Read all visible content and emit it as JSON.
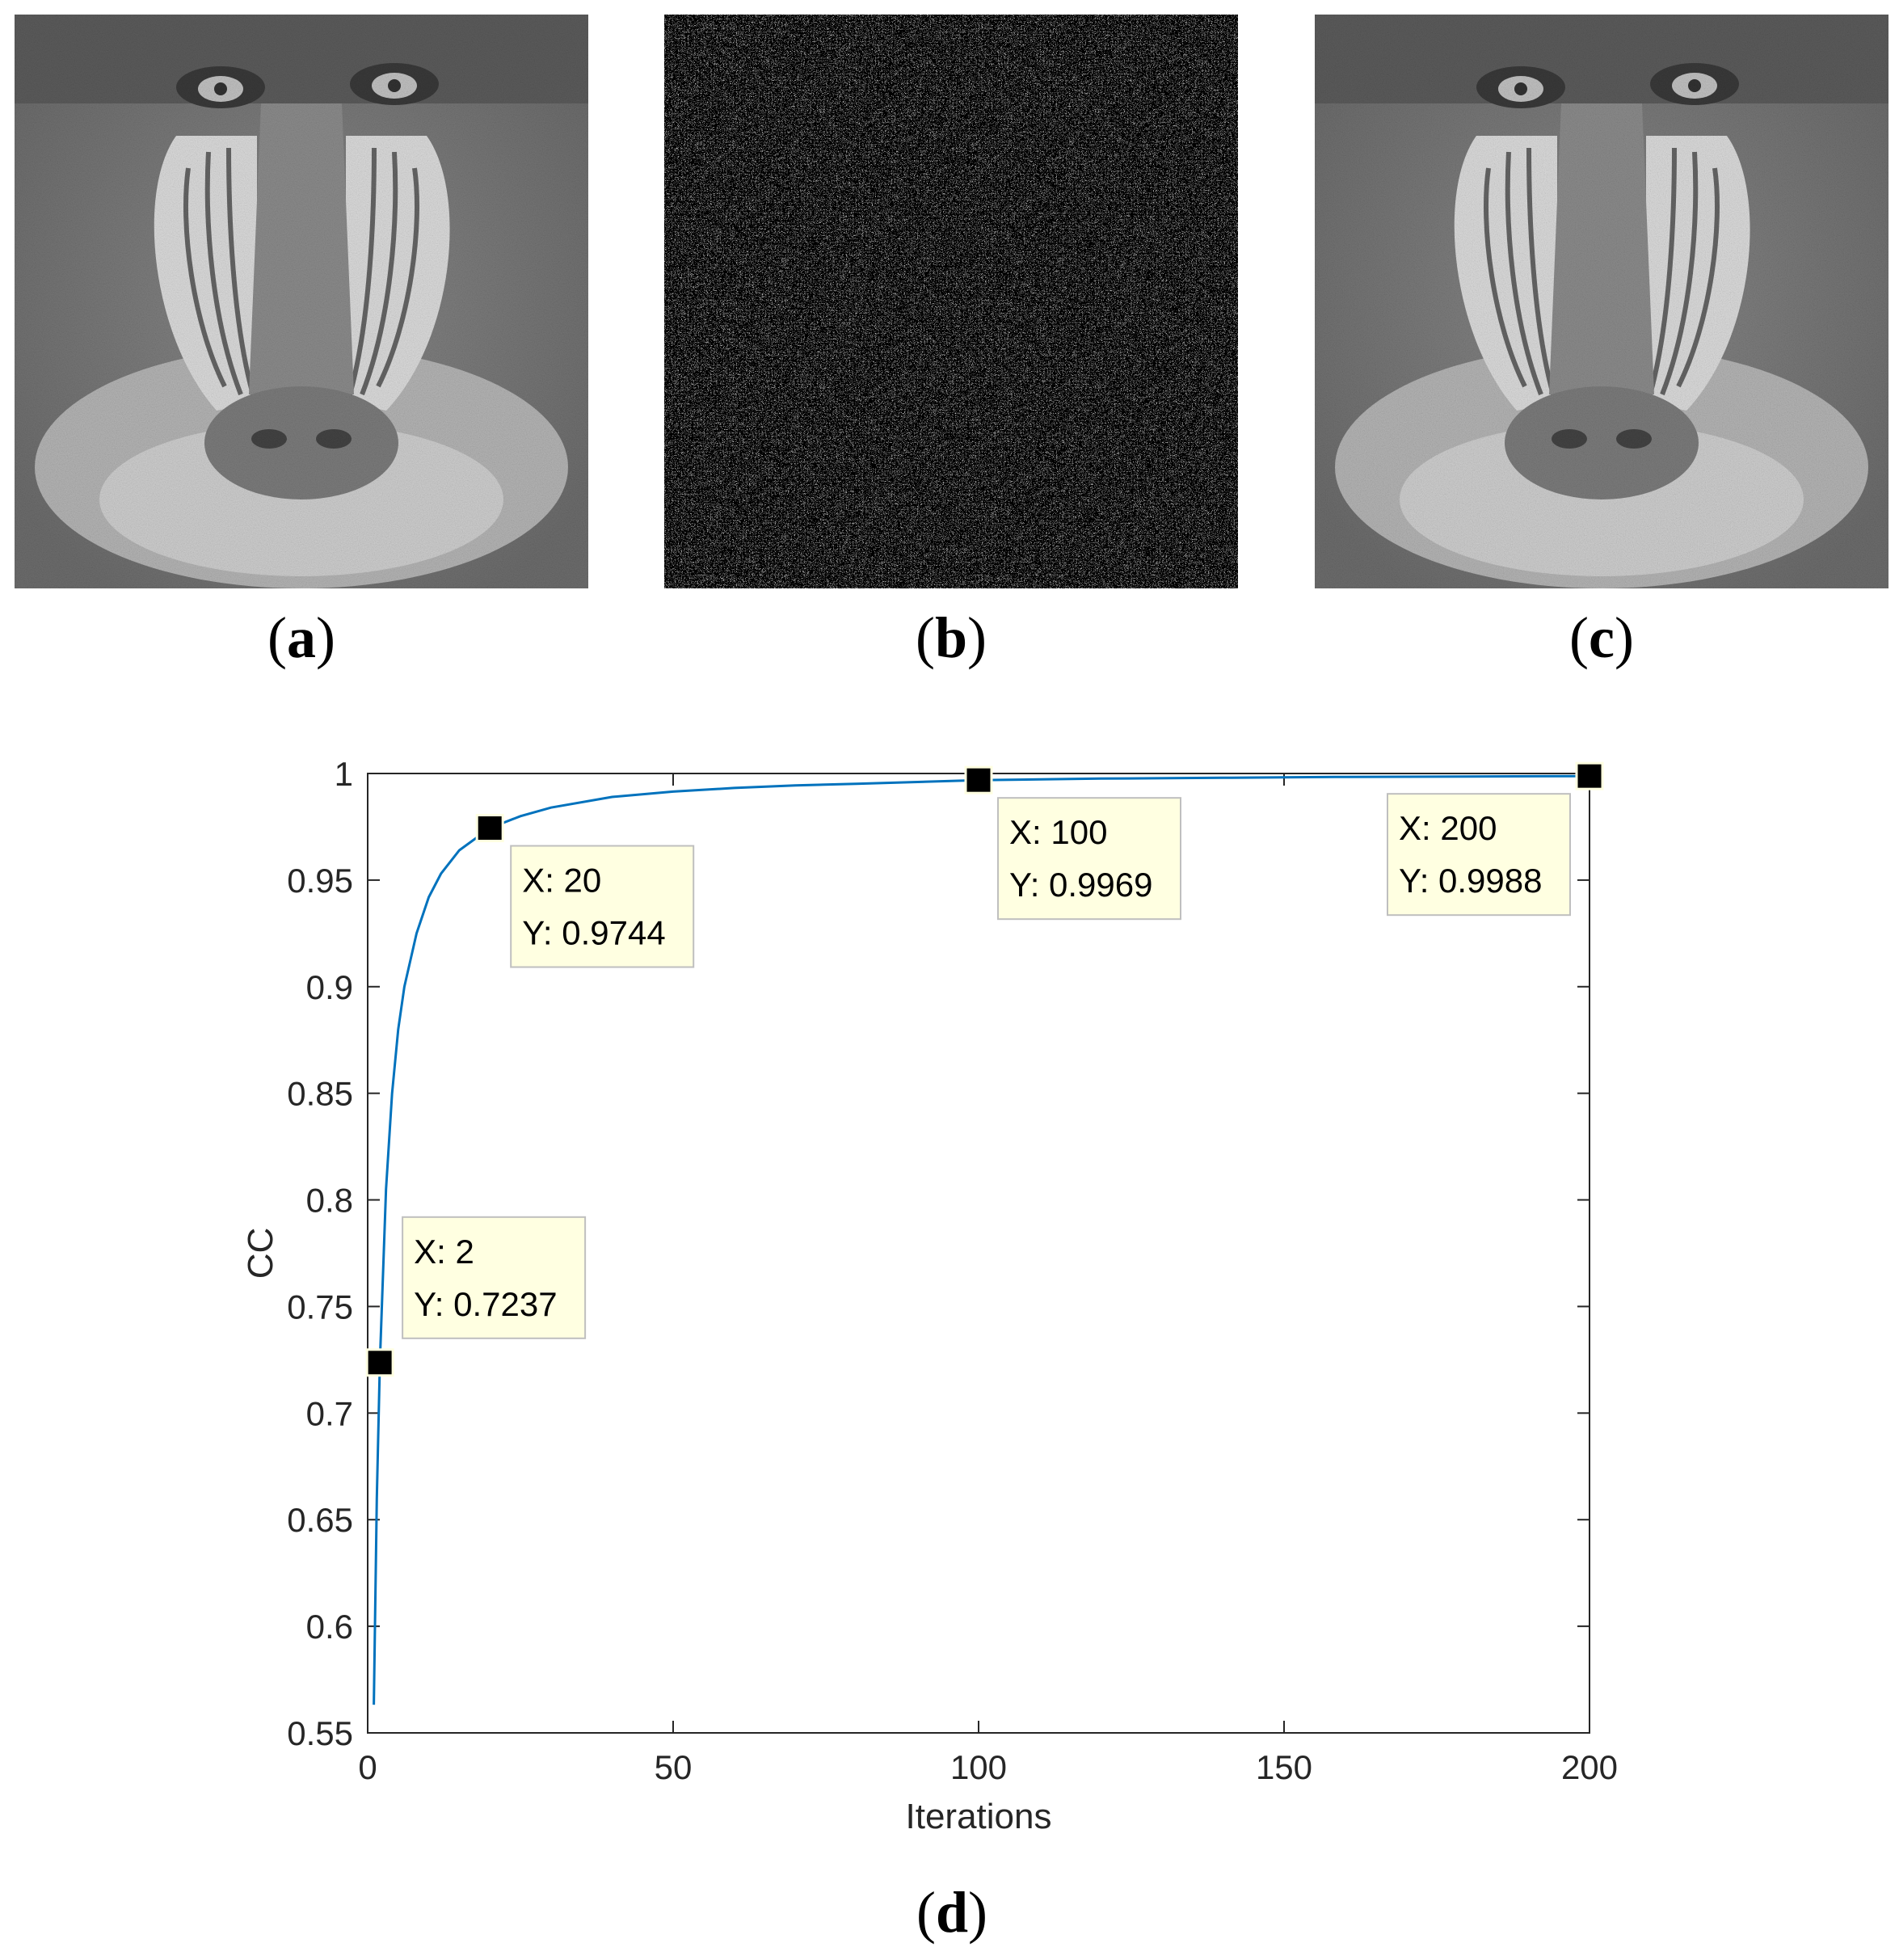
{
  "figure": {
    "panels": [
      {
        "id": "a",
        "label_open": "(",
        "label_letter": "a",
        "label_close": ")",
        "image": "baboon-original-image"
      },
      {
        "id": "b",
        "label_open": "(",
        "label_letter": "b",
        "label_close": ")",
        "image": "encrypted-noise-image"
      },
      {
        "id": "c",
        "label_open": "(",
        "label_letter": "c",
        "label_close": ")",
        "image": "baboon-decrypted-image"
      },
      {
        "id": "d",
        "label_open": "(",
        "label_letter": "d",
        "label_close": ")",
        "image": "cc-vs-iterations-chart"
      }
    ]
  },
  "chart_data": {
    "type": "line",
    "title": "",
    "xlabel": "Iterations",
    "ylabel": "CC",
    "xlim": [
      0,
      200
    ],
    "ylim": [
      0.55,
      1.0
    ],
    "x_ticks": [
      "0",
      "50",
      "100",
      "150",
      "200"
    ],
    "y_ticks": [
      "0.55",
      "0.6",
      "0.65",
      "0.7",
      "0.75",
      "0.8",
      "0.85",
      "0.9",
      "0.95",
      "1"
    ],
    "grid": false,
    "line_color": "#0072BD",
    "series": [
      {
        "x": [
          1,
          1.5,
          2,
          3,
          4,
          5,
          6,
          8,
          10,
          12,
          15,
          20,
          25,
          30,
          40,
          50,
          60,
          70,
          80,
          100,
          120,
          140,
          160,
          180,
          200
        ],
        "values": [
          0.5632,
          0.66,
          0.7237,
          0.805,
          0.85,
          0.88,
          0.9,
          0.925,
          0.942,
          0.953,
          0.964,
          0.9744,
          0.98,
          0.984,
          0.989,
          0.9915,
          0.9932,
          0.9944,
          0.9952,
          0.9969,
          0.9976,
          0.998,
          0.9984,
          0.9986,
          0.9988
        ]
      }
    ],
    "datatips": [
      {
        "x": 2,
        "y": 0.7237,
        "x_text": "X: 2",
        "y_text": "Y: 0.7237"
      },
      {
        "x": 20,
        "y": 0.9744,
        "x_text": "X: 20",
        "y_text": "Y: 0.9744"
      },
      {
        "x": 100,
        "y": 0.9969,
        "x_text": "X: 100",
        "y_text": "Y: 0.9969"
      },
      {
        "x": 200,
        "y": 0.9988,
        "x_text": "X: 200",
        "y_text": "Y: 0.9988"
      }
    ]
  }
}
